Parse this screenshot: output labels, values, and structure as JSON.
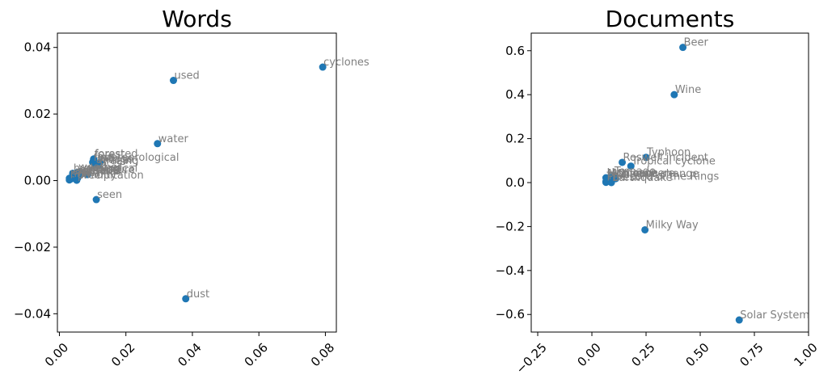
{
  "chart_data": [
    {
      "type": "scatter",
      "title": "Words",
      "xlim": [
        -0.0006,
        0.0833
      ],
      "ylim": [
        -0.0455,
        0.0443
      ],
      "xticks": [
        0.0,
        0.02,
        0.04,
        0.06,
        0.08
      ],
      "xtick_labels": [
        "0.00",
        "0.02",
        "0.04",
        "0.06",
        "0.08"
      ],
      "yticks": [
        -0.04,
        -0.02,
        0.0,
        0.02,
        0.04
      ],
      "ytick_labels": [
        "−0.04",
        "−0.02",
        "0.00",
        "0.02",
        "0.04"
      ],
      "xtick_rotation": 45,
      "points": [
        {
          "label": "cyclones",
          "x": 0.0792,
          "y": 0.0341
        },
        {
          "label": "used",
          "x": 0.0343,
          "y": 0.0301
        },
        {
          "label": "water",
          "x": 0.0295,
          "y": 0.0111
        },
        {
          "label": "forested",
          "x": 0.0103,
          "y": 0.0065
        },
        {
          "label": "forest",
          "x": 0.0103,
          "y": 0.0064
        },
        {
          "label": "meteorological",
          "x": 0.0122,
          "y": 0.0055
        },
        {
          "label": "grazing",
          "x": 0.0118,
          "y": 0.0045
        },
        {
          "label": "foliage",
          "x": 0.0113,
          "y": 0.005
        },
        {
          "label": "animal",
          "x": 0.0108,
          "y": 0.0048
        },
        {
          "label": "fine",
          "x": 0.01,
          "y": 0.0055
        },
        {
          "label": "moisture",
          "x": 0.0085,
          "y": 0.0018
        },
        {
          "label": "ground",
          "x": 0.0072,
          "y": 0.0022
        },
        {
          "label": "weather",
          "x": 0.0055,
          "y": 0.0025
        },
        {
          "label": "hydrological",
          "x": 0.004,
          "y": 0.0022
        },
        {
          "label": "surface",
          "x": 0.006,
          "y": 0.0017
        },
        {
          "label": "sporadic",
          "x": 0.005,
          "y": 0.0015
        },
        {
          "label": "particles",
          "x": 0.0045,
          "y": 0.0013
        },
        {
          "label": "rainfall",
          "x": 0.003,
          "y": 0.0007
        },
        {
          "label": "soil",
          "x": 0.0035,
          "y": 0.0005
        },
        {
          "label": "rain",
          "x": 0.0055,
          "y": 0.0008
        },
        {
          "label": "humidity",
          "x": 0.003,
          "y": 0.0002
        },
        {
          "label": "precipitation",
          "x": 0.0052,
          "y": 0.0001
        },
        {
          "label": "seen",
          "x": 0.0111,
          "y": -0.0057
        },
        {
          "label": "dust",
          "x": 0.038,
          "y": -0.0355
        }
      ]
    },
    {
      "type": "scatter",
      "title": "Documents",
      "xlim": [
        -0.28,
        1.0
      ],
      "ylim": [
        -0.68,
        0.68
      ],
      "xticks": [
        -0.25,
        0.0,
        0.25,
        0.5,
        0.75,
        1.0
      ],
      "xtick_labels": [
        "−0.25",
        "0.00",
        "0.25",
        "0.50",
        "0.75",
        "1.00"
      ],
      "yticks": [
        -0.6,
        -0.4,
        -0.2,
        0.0,
        0.2,
        0.4,
        0.6
      ],
      "ytick_labels": [
        "−0.6",
        "−0.4",
        "−0.2",
        "0.0",
        "0.2",
        "0.4",
        "0.6"
      ],
      "xtick_rotation": 45,
      "points": [
        {
          "label": "Beer",
          "x": 0.42,
          "y": 0.615
        },
        {
          "label": "Wine",
          "x": 0.38,
          "y": 0.4
        },
        {
          "label": "Typhoon",
          "x": 0.25,
          "y": 0.115
        },
        {
          "label": "Roswell incident",
          "x": 0.14,
          "y": 0.092
        },
        {
          "label": "Tropical cyclone",
          "x": 0.18,
          "y": 0.075
        },
        {
          "label": "Tornado",
          "x": 0.1,
          "y": 0.03
        },
        {
          "label": "Hurricane",
          "x": 0.065,
          "y": 0.022
        },
        {
          "label": "Monsoon",
          "x": 0.07,
          "y": 0.018
        },
        {
          "label": "Atmosphere",
          "x": 0.085,
          "y": 0.02
        },
        {
          "label": "Climate change",
          "x": 0.11,
          "y": 0.018
        },
        {
          "label": "The Lord of the Rings",
          "x": 0.065,
          "y": 0.005
        },
        {
          "label": "Forest",
          "x": 0.065,
          "y": 0.001
        },
        {
          "label": "Earthquake",
          "x": 0.09,
          "y": 0.0
        },
        {
          "label": "Milky Way",
          "x": 0.245,
          "y": -0.215
        },
        {
          "label": "Solar System",
          "x": 0.68,
          "y": -0.625
        }
      ]
    }
  ]
}
